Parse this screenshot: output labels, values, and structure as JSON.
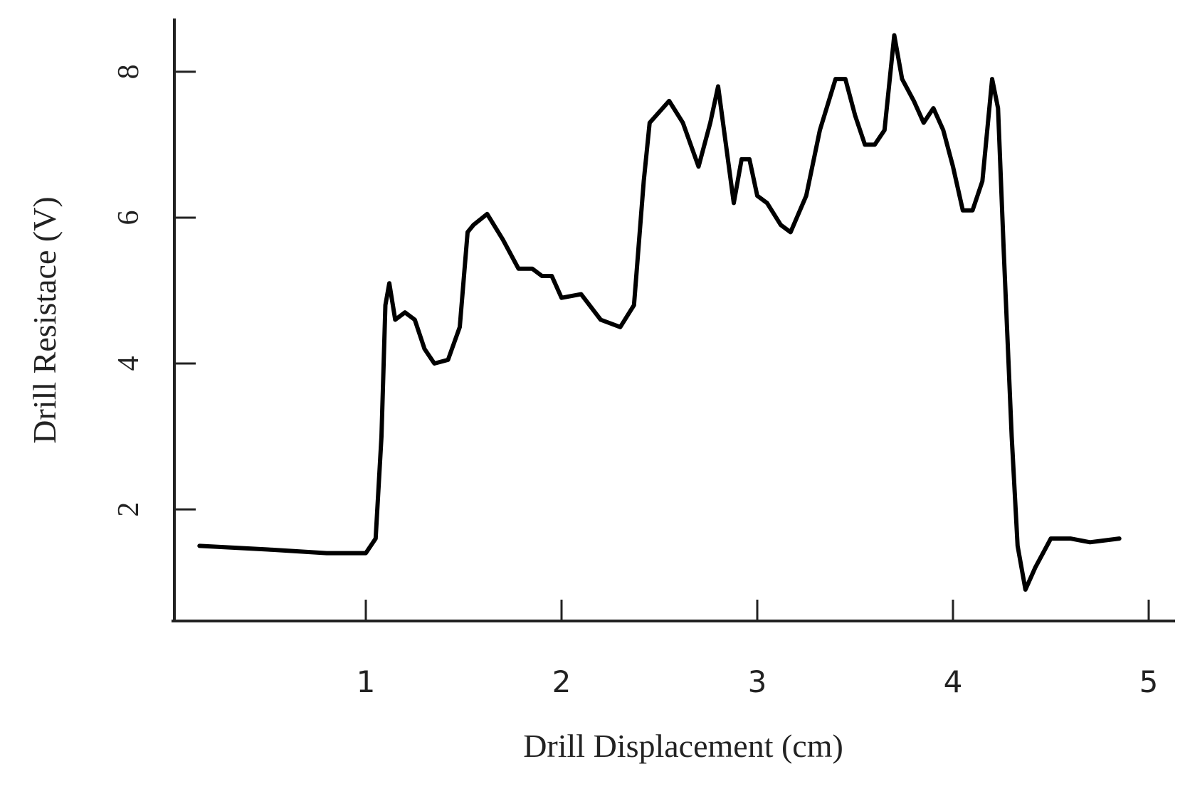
{
  "chart_data": {
    "type": "line",
    "x_label": "Drill Displacement (cm)",
    "y_label": "Drill Resistace (V)",
    "color": "#000000",
    "xlim": [
      0,
      5.12
    ],
    "ylim": [
      0.47,
      8.73
    ],
    "xticks": [
      1,
      2,
      3,
      4,
      5
    ],
    "yticks": [
      2,
      4,
      6,
      8
    ],
    "x": [
      0.15,
      0.5,
      0.8,
      1.0,
      1.05,
      1.08,
      1.1,
      1.12,
      1.15,
      1.2,
      1.25,
      1.3,
      1.35,
      1.42,
      1.48,
      1.52,
      1.55,
      1.62,
      1.7,
      1.78,
      1.85,
      1.9,
      1.95,
      2.0,
      2.1,
      2.2,
      2.3,
      2.37,
      2.42,
      2.45,
      2.55,
      2.62,
      2.7,
      2.76,
      2.8,
      2.84,
      2.88,
      2.92,
      2.96,
      3.0,
      3.05,
      3.12,
      3.17,
      3.25,
      3.32,
      3.4,
      3.45,
      3.5,
      3.55,
      3.6,
      3.65,
      3.7,
      3.74,
      3.8,
      3.85,
      3.9,
      3.95,
      4.0,
      4.05,
      4.1,
      4.15,
      4.2,
      4.23,
      4.26,
      4.3,
      4.33,
      4.37,
      4.42,
      4.5,
      4.6,
      4.7,
      4.85
    ],
    "values": [
      1.5,
      1.45,
      1.4,
      1.4,
      1.6,
      3.0,
      4.8,
      5.1,
      4.6,
      4.7,
      4.6,
      4.2,
      4.0,
      4.05,
      4.5,
      5.8,
      5.9,
      6.05,
      5.7,
      5.3,
      5.3,
      5.2,
      5.2,
      4.9,
      4.95,
      4.6,
      4.5,
      4.8,
      6.5,
      7.3,
      7.6,
      7.3,
      6.7,
      7.3,
      7.8,
      7.0,
      6.2,
      6.8,
      6.8,
      6.3,
      6.2,
      5.9,
      5.8,
      6.3,
      7.2,
      7.9,
      7.9,
      7.4,
      7.0,
      7.0,
      7.2,
      8.5,
      7.9,
      7.6,
      7.3,
      7.5,
      7.2,
      6.7,
      6.1,
      6.1,
      6.5,
      7.9,
      7.5,
      5.5,
      3.0,
      1.5,
      0.9,
      1.2,
      1.6,
      1.6,
      1.55,
      1.6
    ]
  }
}
